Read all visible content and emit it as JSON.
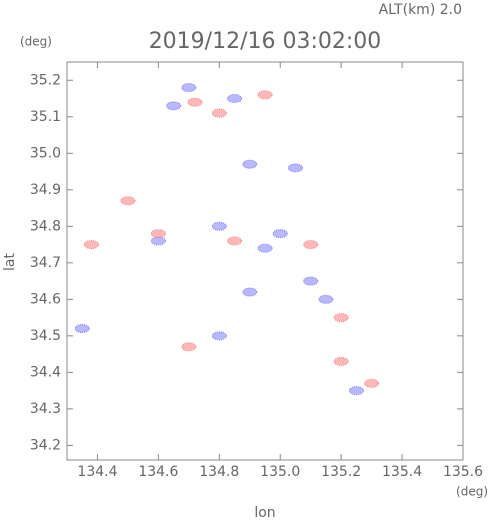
{
  "chart_data": {
    "type": "scatter",
    "title": "2019/12/16 03:02:00",
    "annotation": "ALT(km)  2.0",
    "y_unit": "(deg)",
    "x_unit": "(deg)",
    "xlabel": "lon",
    "ylabel": "lat",
    "xlim": [
      134.3,
      135.6
    ],
    "ylim": [
      34.16,
      35.25
    ],
    "xticks": [
      134.4,
      134.6,
      134.8,
      {
        "value": 135,
        "label": "135.0"
      },
      135.2,
      135.4,
      135.6
    ],
    "yticks": [
      34.2,
      34.3,
      34.4,
      34.5,
      34.6,
      34.7,
      34.8,
      34.9,
      {
        "value": 35,
        "label": "35.0"
      },
      35.1,
      35.2
    ],
    "series": [
      {
        "color": "#7d7dff",
        "x": [
          134.65,
          134.7,
          134.85,
          134.9,
          135.05,
          134.8,
          134.95,
          135.1,
          135.15,
          134.9,
          135.25,
          134.35,
          134.8,
          135.0,
          134.6
        ],
        "values": [
          35.13,
          35.18,
          35.15,
          34.97,
          34.96,
          34.8,
          34.74,
          34.65,
          34.6,
          34.62,
          34.35,
          34.52,
          34.5,
          34.78,
          34.76
        ]
      },
      {
        "color": "#ff7d7d",
        "x": [
          134.72,
          134.8,
          134.95,
          134.5,
          134.6,
          134.85,
          135.1,
          135.2,
          135.3,
          135.2,
          134.7,
          134.38
        ],
        "values": [
          35.14,
          35.11,
          35.16,
          34.87,
          34.78,
          34.76,
          34.75,
          34.55,
          34.37,
          34.43,
          34.47,
          34.75
        ]
      }
    ]
  }
}
